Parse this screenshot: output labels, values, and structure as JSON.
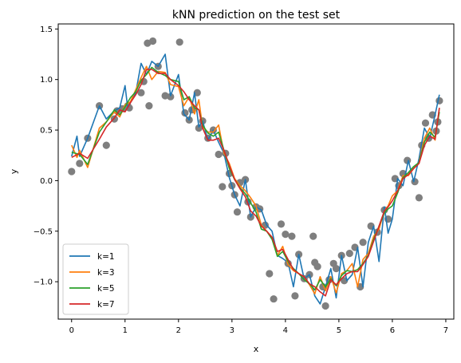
{
  "chart_data": {
    "type": "line",
    "title": "kNN prediction on the test set",
    "xlabel": "x",
    "ylabel": "y",
    "xlim": [
      -0.25,
      7.15
    ],
    "ylim": [
      -1.37,
      1.55
    ],
    "xticks": [
      0,
      1,
      2,
      3,
      4,
      5,
      6,
      7
    ],
    "yticks": [
      -1.0,
      -0.5,
      0.0,
      0.5,
      1.0,
      1.5
    ],
    "grid": false,
    "legend_position": "lower-left",
    "scatter": {
      "color": "#7f7f7f",
      "points": [
        [
          0.0,
          0.09
        ],
        [
          0.15,
          0.17
        ],
        [
          0.3,
          0.42
        ],
        [
          0.52,
          0.74
        ],
        [
          0.65,
          0.35
        ],
        [
          0.8,
          0.61
        ],
        [
          0.85,
          0.69
        ],
        [
          0.95,
          0.71
        ],
        [
          1.05,
          0.74
        ],
        [
          1.08,
          0.72
        ],
        [
          1.3,
          0.87
        ],
        [
          1.35,
          0.98
        ],
        [
          1.42,
          1.36
        ],
        [
          1.45,
          0.74
        ],
        [
          1.52,
          1.38
        ],
        [
          1.62,
          1.13
        ],
        [
          1.75,
          0.84
        ],
        [
          1.85,
          0.83
        ],
        [
          2.02,
          1.37
        ],
        [
          2.12,
          0.67
        ],
        [
          2.2,
          0.6
        ],
        [
          2.25,
          0.7
        ],
        [
          2.35,
          0.87
        ],
        [
          2.38,
          0.52
        ],
        [
          2.45,
          0.59
        ],
        [
          2.55,
          0.42
        ],
        [
          2.65,
          0.5
        ],
        [
          2.75,
          0.26
        ],
        [
          2.82,
          -0.06
        ],
        [
          2.88,
          0.27
        ],
        [
          2.95,
          0.07
        ],
        [
          3.0,
          -0.05
        ],
        [
          3.05,
          -0.14
        ],
        [
          3.1,
          -0.31
        ],
        [
          3.15,
          -0.02
        ],
        [
          3.25,
          0.01
        ],
        [
          3.3,
          -0.21
        ],
        [
          3.35,
          -0.36
        ],
        [
          3.45,
          -0.26
        ],
        [
          3.52,
          -0.28
        ],
        [
          3.62,
          -0.44
        ],
        [
          3.7,
          -0.92
        ],
        [
          3.78,
          -1.17
        ],
        [
          3.92,
          -0.43
        ],
        [
          4.0,
          -0.53
        ],
        [
          4.05,
          -0.82
        ],
        [
          4.12,
          -0.55
        ],
        [
          4.18,
          -1.14
        ],
        [
          4.25,
          -0.73
        ],
        [
          4.35,
          -0.97
        ],
        [
          4.45,
          -0.93
        ],
        [
          4.52,
          -0.55
        ],
        [
          4.55,
          -0.81
        ],
        [
          4.6,
          -0.85
        ],
        [
          4.7,
          -1.05
        ],
        [
          4.75,
          -1.24
        ],
        [
          4.82,
          -0.98
        ],
        [
          4.9,
          -0.82
        ],
        [
          4.95,
          -0.87
        ],
        [
          5.05,
          -0.74
        ],
        [
          5.1,
          -0.99
        ],
        [
          5.2,
          -0.72
        ],
        [
          5.3,
          -0.66
        ],
        [
          5.4,
          -1.05
        ],
        [
          5.45,
          -0.61
        ],
        [
          5.6,
          -0.45
        ],
        [
          5.72,
          -0.51
        ],
        [
          5.85,
          -0.29
        ],
        [
          5.92,
          -0.38
        ],
        [
          6.05,
          0.02
        ],
        [
          6.12,
          -0.05
        ],
        [
          6.2,
          0.07
        ],
        [
          6.28,
          0.2
        ],
        [
          6.42,
          -0.01
        ],
        [
          6.5,
          -0.17
        ],
        [
          6.55,
          0.35
        ],
        [
          6.62,
          0.57
        ],
        [
          6.68,
          0.42
        ],
        [
          6.75,
          0.65
        ],
        [
          6.82,
          0.49
        ],
        [
          6.85,
          0.58
        ],
        [
          6.88,
          0.79
        ]
      ]
    },
    "series": [
      {
        "name": "k=1",
        "color": "#1f77b4",
        "x": [
          0.0,
          0.1,
          0.15,
          0.3,
          0.52,
          0.65,
          0.8,
          0.9,
          1.0,
          1.05,
          1.2,
          1.3,
          1.4,
          1.5,
          1.62,
          1.75,
          1.85,
          2.0,
          2.1,
          2.2,
          2.3,
          2.38,
          2.45,
          2.55,
          2.65,
          2.75,
          2.85,
          2.95,
          3.05,
          3.15,
          3.25,
          3.35,
          3.45,
          3.55,
          3.65,
          3.75,
          3.85,
          3.95,
          4.05,
          4.15,
          4.25,
          4.35,
          4.45,
          4.55,
          4.65,
          4.75,
          4.85,
          4.95,
          5.05,
          5.15,
          5.25,
          5.35,
          5.45,
          5.55,
          5.65,
          5.75,
          5.85,
          5.92,
          6.0,
          6.1,
          6.2,
          6.3,
          6.4,
          6.5,
          6.6,
          6.7,
          6.8,
          6.88
        ],
        "y": [
          0.24,
          0.44,
          0.24,
          0.42,
          0.74,
          0.61,
          0.69,
          0.72,
          0.94,
          0.72,
          0.87,
          1.16,
          1.05,
          1.18,
          1.13,
          1.25,
          0.84,
          1.05,
          0.66,
          0.6,
          0.87,
          0.53,
          0.59,
          0.4,
          0.5,
          0.38,
          0.27,
          0.03,
          -0.14,
          -0.25,
          0.01,
          -0.36,
          -0.26,
          -0.29,
          -0.44,
          -0.5,
          -0.74,
          -0.77,
          -0.81,
          -1.05,
          -0.73,
          -0.97,
          -0.93,
          -1.14,
          -1.22,
          -1.05,
          -0.87,
          -1.16,
          -0.74,
          -0.99,
          -0.93,
          -0.66,
          -1.05,
          -0.61,
          -0.45,
          -0.8,
          -0.26,
          -0.52,
          -0.38,
          0.02,
          -0.05,
          0.2,
          -0.01,
          0.22,
          0.52,
          0.42,
          0.65,
          0.85
        ]
      },
      {
        "name": "k=3",
        "color": "#ff7f0e",
        "x": [
          0.0,
          0.1,
          0.15,
          0.3,
          0.52,
          0.65,
          0.8,
          0.9,
          1.0,
          1.1,
          1.2,
          1.3,
          1.4,
          1.5,
          1.62,
          1.75,
          1.85,
          2.0,
          2.1,
          2.2,
          2.3,
          2.38,
          2.45,
          2.55,
          2.65,
          2.75,
          2.85,
          2.95,
          3.05,
          3.15,
          3.25,
          3.35,
          3.45,
          3.55,
          3.65,
          3.75,
          3.85,
          3.95,
          4.05,
          4.15,
          4.25,
          4.35,
          4.45,
          4.55,
          4.65,
          4.75,
          4.85,
          4.95,
          5.05,
          5.15,
          5.25,
          5.35,
          5.45,
          5.55,
          5.65,
          5.75,
          5.85,
          5.92,
          6.0,
          6.1,
          6.2,
          6.3,
          6.4,
          6.5,
          6.6,
          6.7,
          6.8,
          6.88
        ],
        "y": [
          0.35,
          0.23,
          0.3,
          0.13,
          0.52,
          0.58,
          0.68,
          0.63,
          0.75,
          0.78,
          0.9,
          1.02,
          1.13,
          1.0,
          1.08,
          1.07,
          0.95,
          0.93,
          0.74,
          0.83,
          0.66,
          0.8,
          0.53,
          0.48,
          0.48,
          0.55,
          0.27,
          0.17,
          0.02,
          -0.05,
          -0.1,
          -0.17,
          -0.25,
          -0.44,
          -0.5,
          -0.56,
          -0.74,
          -0.65,
          -0.83,
          -0.89,
          -0.92,
          -0.95,
          -1.03,
          -1.12,
          -0.95,
          -1.09,
          -0.95,
          -1.11,
          -0.92,
          -0.89,
          -0.82,
          -1.05,
          -0.78,
          -0.72,
          -0.55,
          -0.48,
          -0.3,
          -0.25,
          -0.15,
          -0.1,
          0.05,
          0.05,
          0.12,
          0.18,
          0.42,
          0.52,
          0.4,
          0.72
        ]
      },
      {
        "name": "k=5",
        "color": "#2ca02c",
        "x": [
          0.0,
          0.15,
          0.3,
          0.52,
          0.65,
          0.8,
          0.9,
          1.0,
          1.1,
          1.2,
          1.3,
          1.4,
          1.5,
          1.62,
          1.75,
          1.85,
          2.0,
          2.1,
          2.2,
          2.3,
          2.38,
          2.45,
          2.55,
          2.65,
          2.75,
          2.85,
          2.95,
          3.05,
          3.15,
          3.25,
          3.35,
          3.45,
          3.55,
          3.65,
          3.75,
          3.85,
          3.95,
          4.05,
          4.15,
          4.25,
          4.35,
          4.45,
          4.55,
          4.65,
          4.75,
          4.85,
          4.95,
          5.05,
          5.15,
          5.25,
          5.35,
          5.45,
          5.55,
          5.65,
          5.75,
          5.85,
          5.92,
          6.0,
          6.1,
          6.2,
          6.3,
          6.4,
          6.5,
          6.6,
          6.7,
          6.8,
          6.88
        ],
        "y": [
          0.28,
          0.26,
          0.16,
          0.48,
          0.58,
          0.7,
          0.65,
          0.73,
          0.82,
          0.88,
          0.99,
          1.05,
          1.12,
          1.07,
          1.04,
          1.0,
          0.98,
          0.8,
          0.83,
          0.72,
          0.7,
          0.55,
          0.47,
          0.44,
          0.48,
          0.3,
          0.12,
          0.01,
          -0.07,
          -0.13,
          -0.22,
          -0.31,
          -0.48,
          -0.5,
          -0.58,
          -0.75,
          -0.7,
          -0.8,
          -0.87,
          -0.92,
          -0.98,
          -1.02,
          -1.08,
          -0.98,
          -1.05,
          -0.97,
          -1.04,
          -0.94,
          -0.89,
          -0.9,
          -0.88,
          -0.82,
          -0.74,
          -0.58,
          -0.45,
          -0.32,
          -0.28,
          -0.25,
          -0.12,
          0.03,
          0.08,
          0.14,
          0.18,
          0.38,
          0.48,
          0.43,
          0.68
        ]
      },
      {
        "name": "k=7",
        "color": "#d62728",
        "x": [
          0.0,
          0.15,
          0.3,
          0.52,
          0.65,
          0.8,
          0.9,
          1.0,
          1.1,
          1.2,
          1.3,
          1.4,
          1.5,
          1.62,
          1.75,
          1.85,
          2.0,
          2.1,
          2.2,
          2.3,
          2.38,
          2.45,
          2.55,
          2.65,
          2.75,
          2.85,
          2.95,
          3.05,
          3.15,
          3.25,
          3.35,
          3.45,
          3.55,
          3.65,
          3.75,
          3.85,
          3.95,
          4.05,
          4.15,
          4.25,
          4.35,
          4.45,
          4.55,
          4.65,
          4.75,
          4.85,
          4.95,
          5.05,
          5.15,
          5.25,
          5.35,
          5.45,
          5.55,
          5.65,
          5.75,
          5.85,
          5.92,
          6.0,
          6.1,
          6.2,
          6.3,
          6.4,
          6.5,
          6.6,
          6.7,
          6.8,
          6.88
        ],
        "y": [
          0.23,
          0.27,
          0.22,
          0.41,
          0.53,
          0.62,
          0.7,
          0.68,
          0.77,
          0.85,
          0.95,
          1.1,
          1.1,
          1.06,
          1.06,
          1.0,
          0.94,
          0.88,
          0.8,
          0.74,
          0.7,
          0.52,
          0.4,
          0.4,
          0.42,
          0.3,
          0.15,
          0.01,
          -0.08,
          -0.16,
          -0.3,
          -0.35,
          -0.45,
          -0.5,
          -0.56,
          -0.7,
          -0.68,
          -0.78,
          -0.88,
          -0.92,
          -0.95,
          -1.02,
          -1.05,
          -1.1,
          -1.14,
          -0.98,
          -1.03,
          -0.97,
          -0.92,
          -0.9,
          -0.9,
          -0.83,
          -0.75,
          -0.6,
          -0.45,
          -0.3,
          -0.26,
          -0.2,
          -0.1,
          0.02,
          0.06,
          0.12,
          0.17,
          0.35,
          0.44,
          0.41,
          0.72
        ]
      }
    ]
  }
}
